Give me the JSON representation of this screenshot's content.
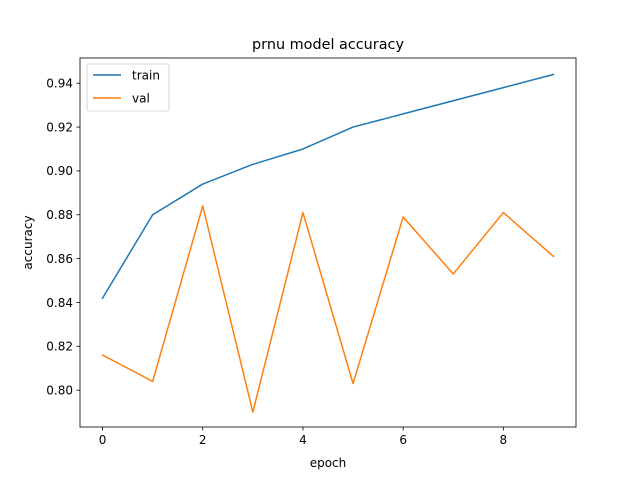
{
  "chart_data": {
    "type": "line",
    "title": "prnu model accuracy",
    "xlabel": "epoch",
    "ylabel": "accuracy",
    "xlim": [
      -0.45,
      9.45
    ],
    "ylim": [
      0.7832,
      0.9515
    ],
    "x_ticks": [
      0,
      2,
      4,
      6,
      8
    ],
    "x_tick_labels": [
      "0",
      "2",
      "4",
      "6",
      "8"
    ],
    "y_ticks": [
      0.8,
      0.82,
      0.84,
      0.86,
      0.88,
      0.9,
      0.92,
      0.94
    ],
    "y_tick_labels": [
      "0.80",
      "0.82",
      "0.84",
      "0.86",
      "0.88",
      "0.90",
      "0.92",
      "0.94"
    ],
    "grid": false,
    "legend_position": "top-left",
    "x": [
      0,
      1,
      2,
      3,
      4,
      5,
      6,
      7,
      8,
      9
    ],
    "series": [
      {
        "name": "train",
        "color": "#1f77b4",
        "values": [
          0.842,
          0.88,
          0.894,
          0.903,
          0.91,
          0.92,
          0.926,
          0.932,
          0.938,
          0.944
        ]
      },
      {
        "name": "val",
        "color": "#ff7f0e",
        "values": [
          0.816,
          0.804,
          0.884,
          0.79,
          0.881,
          0.803,
          0.879,
          0.853,
          0.881,
          0.861
        ]
      }
    ]
  }
}
